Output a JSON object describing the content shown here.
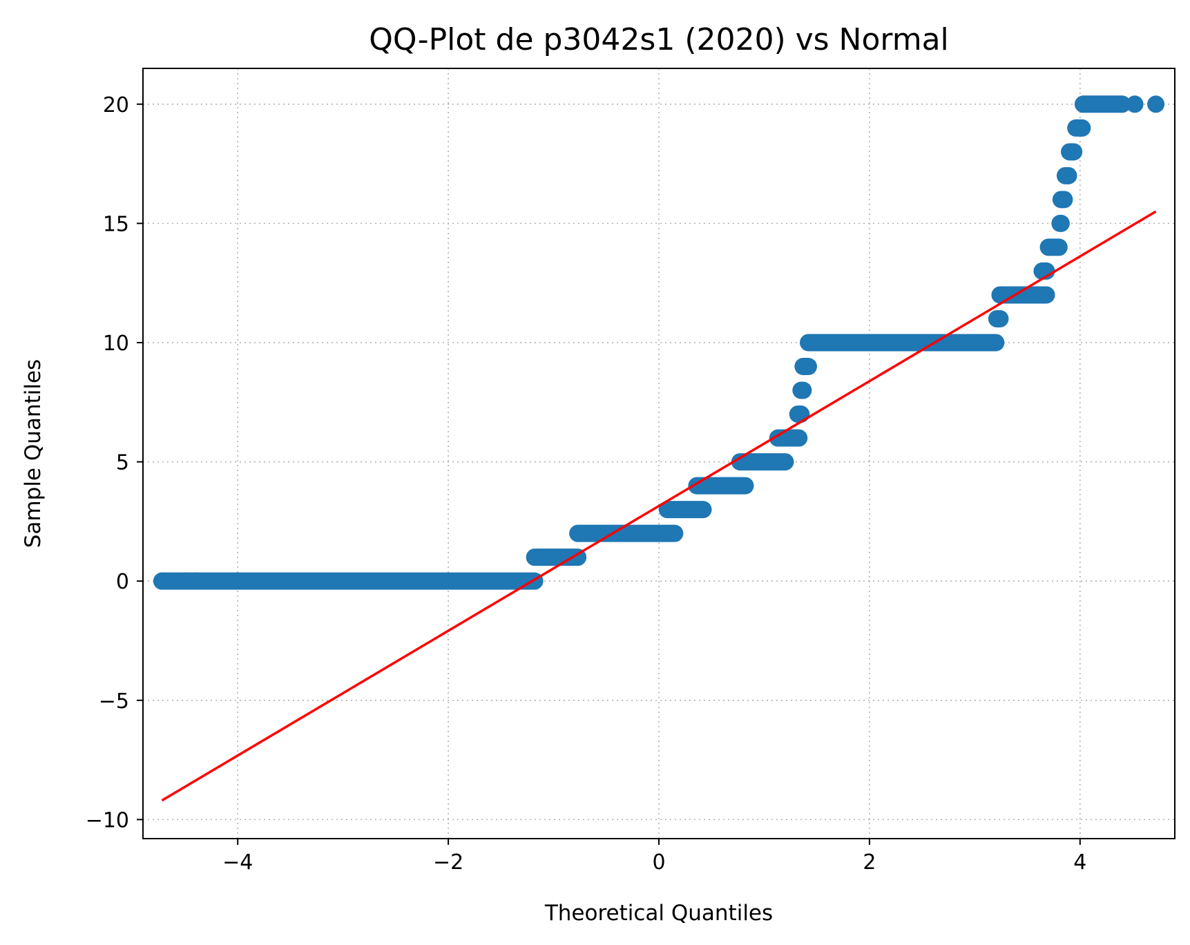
{
  "chart_data": {
    "type": "scatter",
    "title": "QQ-Plot de p3042s1 (2020) vs Normal",
    "xlabel": "Theoretical Quantiles",
    "ylabel": "Sample Quantiles",
    "xlim": [
      -4.9,
      4.9
    ],
    "ylim": [
      -10.8,
      21.5
    ],
    "xticks": [
      -4,
      -2,
      0,
      2,
      4
    ],
    "xtick_labels": [
      "−4",
      "−2",
      "0",
      "2",
      "4"
    ],
    "yticks": [
      -10,
      -5,
      0,
      5,
      10,
      15,
      20
    ],
    "ytick_labels": [
      "−10",
      "−5",
      "0",
      "5",
      "10",
      "15",
      "20"
    ],
    "grid": true,
    "grid_style": "dotted",
    "marker_color": "#1f77b4",
    "line_color": "#ff0000",
    "series": [
      {
        "kind": "points",
        "segments": [
          {
            "y": 0,
            "x_start": -4.72,
            "x_end": -1.18
          },
          {
            "y": 1,
            "x_start": -1.18,
            "x_end": -0.77
          },
          {
            "y": 2,
            "x_start": -0.77,
            "x_end": 0.15
          },
          {
            "y": 3,
            "x_start": 0.08,
            "x_end": 0.42
          },
          {
            "y": 4,
            "x_start": 0.36,
            "x_end": 0.82
          },
          {
            "y": 5,
            "x_start": 0.77,
            "x_end": 1.2
          },
          {
            "y": 6,
            "x_start": 1.13,
            "x_end": 1.33
          },
          {
            "y": 7,
            "x_start": 1.32,
            "x_end": 1.35
          },
          {
            "y": 8,
            "x_start": 1.35,
            "x_end": 1.37
          },
          {
            "y": 9,
            "x_start": 1.37,
            "x_end": 1.42
          },
          {
            "y": 10,
            "x_start": 1.42,
            "x_end": 3.2
          },
          {
            "y": 11,
            "x_start": 3.21,
            "x_end": 3.24
          },
          {
            "y": 12,
            "x_start": 3.24,
            "x_end": 3.68
          },
          {
            "y": 13,
            "x_start": 3.64,
            "x_end": 3.68
          },
          {
            "y": 14,
            "x_start": 3.7,
            "x_end": 3.8
          },
          {
            "y": 15,
            "x_start": 3.81,
            "x_end": 3.82
          },
          {
            "y": 16,
            "x_start": 3.82,
            "x_end": 3.85
          },
          {
            "y": 17,
            "x_start": 3.86,
            "x_end": 3.89
          },
          {
            "y": 18,
            "x_start": 3.9,
            "x_end": 3.94
          },
          {
            "y": 19,
            "x_start": 3.96,
            "x_end": 4.02
          },
          {
            "y": 20,
            "x_start": 4.03,
            "x_end": 4.4
          }
        ],
        "isolated_points": [
          {
            "x": -4.72,
            "y": 0
          },
          {
            "x": -4.5,
            "y": 0
          },
          {
            "x": -4.4,
            "y": 0
          },
          {
            "x": 4.52,
            "y": 20
          },
          {
            "x": 4.72,
            "y": 20
          }
        ]
      },
      {
        "kind": "line",
        "x": [
          -4.72,
          4.72
        ],
        "y": [
          -9.2,
          15.5
        ]
      }
    ]
  }
}
